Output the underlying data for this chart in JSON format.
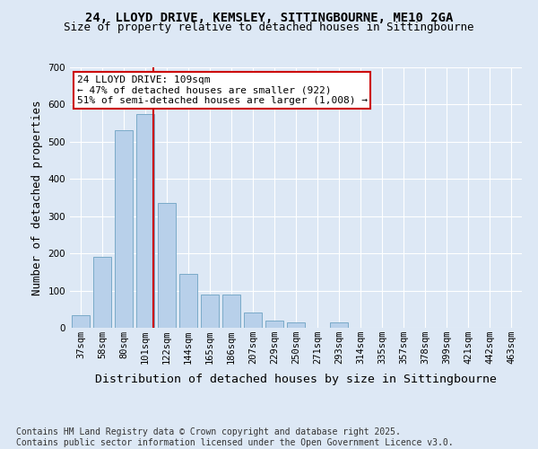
{
  "title1": "24, LLOYD DRIVE, KEMSLEY, SITTINGBOURNE, ME10 2GA",
  "title2": "Size of property relative to detached houses in Sittingbourne",
  "xlabel": "Distribution of detached houses by size in Sittingbourne",
  "ylabel": "Number of detached properties",
  "categories": [
    "37sqm",
    "58sqm",
    "80sqm",
    "101sqm",
    "122sqm",
    "144sqm",
    "165sqm",
    "186sqm",
    "207sqm",
    "229sqm",
    "250sqm",
    "271sqm",
    "293sqm",
    "314sqm",
    "335sqm",
    "357sqm",
    "378sqm",
    "399sqm",
    "421sqm",
    "442sqm",
    "463sqm"
  ],
  "values": [
    35,
    190,
    530,
    575,
    335,
    145,
    90,
    90,
    40,
    20,
    15,
    0,
    15,
    0,
    0,
    0,
    0,
    0,
    0,
    0,
    0
  ],
  "bar_color": "#b8d0ea",
  "bar_edge_color": "#7aaac8",
  "vline_x_index": 3,
  "vline_color": "#cc0000",
  "annotation_text": "24 LLOYD DRIVE: 109sqm\n← 47% of detached houses are smaller (922)\n51% of semi-detached houses are larger (1,008) →",
  "annotation_box_color": "#ffffff",
  "annotation_box_edge": "#cc0000",
  "ylim": [
    0,
    700
  ],
  "yticks": [
    0,
    100,
    200,
    300,
    400,
    500,
    600,
    700
  ],
  "footer": "Contains HM Land Registry data © Crown copyright and database right 2025.\nContains public sector information licensed under the Open Government Licence v3.0.",
  "bg_color": "#dde8f5",
  "plot_bg_color": "#dde8f5",
  "grid_color": "#ffffff",
  "title_fontsize": 10,
  "subtitle_fontsize": 9,
  "axis_label_fontsize": 9,
  "tick_fontsize": 7.5,
  "footer_fontsize": 7
}
